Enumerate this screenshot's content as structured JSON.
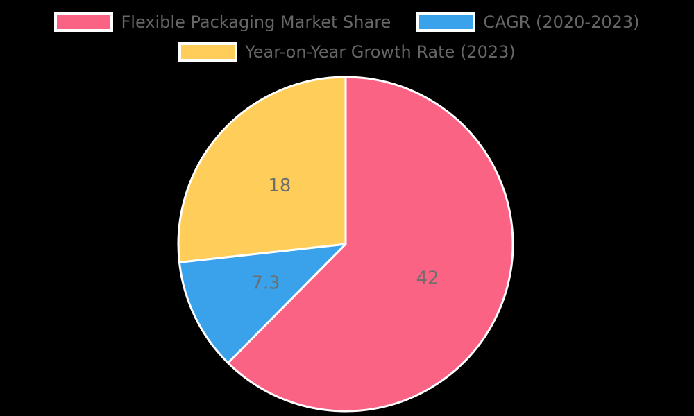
{
  "colors": {
    "background": "#000000",
    "legend_text": "#666666",
    "wedge_label_text": "#6e6e6e",
    "wedge_border": "#ffffff"
  },
  "chart_data": {
    "type": "pie",
    "title": "",
    "categories": [
      "Flexible Packaging Market Share",
      "CAGR (2020-2023)",
      "Year-on-Year Growth Rate (2023)"
    ],
    "values": [
      42,
      7.3,
      18
    ],
    "labels": [
      "42",
      "7.3",
      "18"
    ],
    "slice_colors": [
      "#fb6384",
      "#3aa2ea",
      "#ffce5a"
    ],
    "start_angle": "12-o-clock",
    "direction": "clockwise",
    "legend_position": "top",
    "legend": [
      {
        "label": "Flexible Packaging Market Share",
        "color": "#fb6384"
      },
      {
        "label": "CAGR (2020-2023)",
        "color": "#3aa2ea"
      },
      {
        "label": "Year-on-Year Growth Rate (2023)",
        "color": "#ffce5a"
      }
    ]
  }
}
